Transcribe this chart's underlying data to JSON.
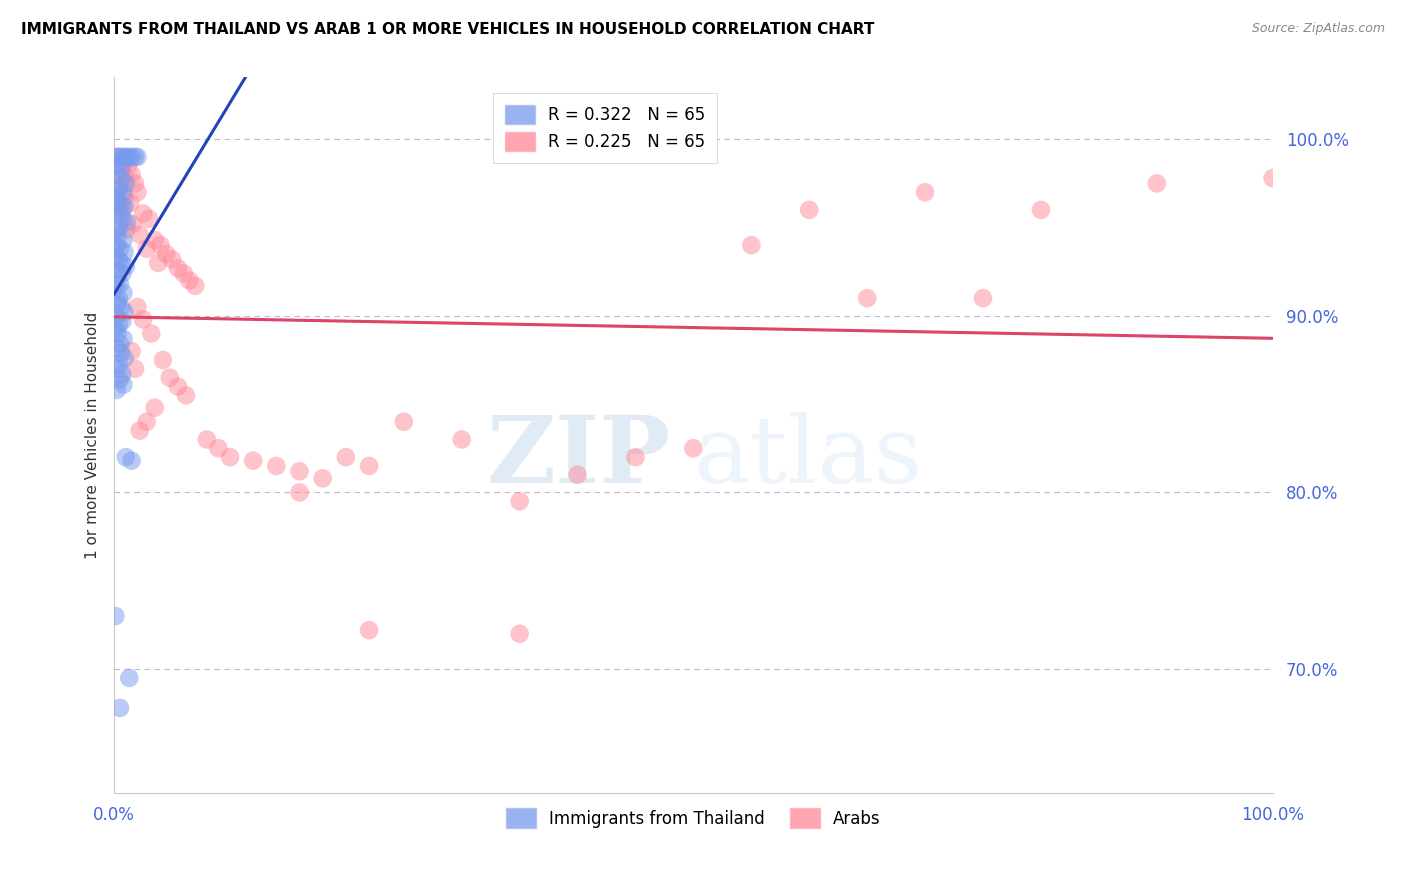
{
  "title": "IMMIGRANTS FROM THAILAND VS ARAB 1 OR MORE VEHICLES IN HOUSEHOLD CORRELATION CHART",
  "source": "Source: ZipAtlas.com",
  "ylabel": "1 or more Vehicles in Household",
  "watermark_zip": "ZIP",
  "watermark_atlas": "atlas",
  "background_color": "#ffffff",
  "grid_color": "#bbbbcc",
  "axis_color": "#cccccc",
  "tick_label_color": "#4466dd",
  "thailand_color": "#7799ee",
  "arab_color": "#ff8899",
  "thailand_line_color": "#2244bb",
  "arab_line_color": "#dd4466",
  "yticks": [
    1.0,
    0.9,
    0.8,
    0.7
  ],
  "xlim": [
    0.0,
    1.0
  ],
  "ylim": [
    0.63,
    1.035
  ],
  "thailand_scatter": [
    [
      0.002,
      0.99
    ],
    [
      0.005,
      0.99
    ],
    [
      0.008,
      0.99
    ],
    [
      0.01,
      0.99
    ],
    [
      0.012,
      0.99
    ],
    [
      0.015,
      0.99
    ],
    [
      0.018,
      0.99
    ],
    [
      0.02,
      0.99
    ],
    [
      0.003,
      0.985
    ],
    [
      0.007,
      0.985
    ],
    [
      0.002,
      0.98
    ],
    [
      0.006,
      0.978
    ],
    [
      0.01,
      0.975
    ],
    [
      0.004,
      0.972
    ],
    [
      0.008,
      0.97
    ],
    [
      0.001,
      0.968
    ],
    [
      0.003,
      0.965
    ],
    [
      0.006,
      0.963
    ],
    [
      0.009,
      0.962
    ],
    [
      0.002,
      0.96
    ],
    [
      0.005,
      0.958
    ],
    [
      0.007,
      0.955
    ],
    [
      0.011,
      0.953
    ],
    [
      0.004,
      0.95
    ],
    [
      0.001,
      0.948
    ],
    [
      0.003,
      0.945
    ],
    [
      0.008,
      0.943
    ],
    [
      0.002,
      0.94
    ],
    [
      0.005,
      0.938
    ],
    [
      0.009,
      0.936
    ],
    [
      0.001,
      0.934
    ],
    [
      0.004,
      0.932
    ],
    [
      0.006,
      0.93
    ],
    [
      0.01,
      0.928
    ],
    [
      0.003,
      0.926
    ],
    [
      0.007,
      0.924
    ],
    [
      0.002,
      0.92
    ],
    [
      0.005,
      0.918
    ],
    [
      0.001,
      0.915
    ],
    [
      0.008,
      0.913
    ],
    [
      0.004,
      0.91
    ],
    [
      0.003,
      0.907
    ],
    [
      0.006,
      0.905
    ],
    [
      0.009,
      0.902
    ],
    [
      0.002,
      0.9
    ],
    [
      0.007,
      0.897
    ],
    [
      0.004,
      0.895
    ],
    [
      0.001,
      0.893
    ],
    [
      0.003,
      0.89
    ],
    [
      0.008,
      0.887
    ],
    [
      0.005,
      0.884
    ],
    [
      0.002,
      0.882
    ],
    [
      0.006,
      0.879
    ],
    [
      0.009,
      0.876
    ],
    [
      0.004,
      0.873
    ],
    [
      0.003,
      0.87
    ],
    [
      0.007,
      0.867
    ],
    [
      0.005,
      0.864
    ],
    [
      0.008,
      0.861
    ],
    [
      0.002,
      0.858
    ],
    [
      0.001,
      0.73
    ],
    [
      0.01,
      0.82
    ],
    [
      0.015,
      0.818
    ],
    [
      0.005,
      0.678
    ],
    [
      0.013,
      0.695
    ]
  ],
  "arab_scatter": [
    [
      0.003,
      0.99
    ],
    [
      0.008,
      0.988
    ],
    [
      0.012,
      0.985
    ],
    [
      0.006,
      0.982
    ],
    [
      0.015,
      0.98
    ],
    [
      0.01,
      0.978
    ],
    [
      0.018,
      0.975
    ],
    [
      0.004,
      0.972
    ],
    [
      0.02,
      0.97
    ],
    [
      0.009,
      0.967
    ],
    [
      0.014,
      0.964
    ],
    [
      0.007,
      0.96
    ],
    [
      0.025,
      0.958
    ],
    [
      0.03,
      0.955
    ],
    [
      0.016,
      0.952
    ],
    [
      0.011,
      0.949
    ],
    [
      0.022,
      0.946
    ],
    [
      0.035,
      0.943
    ],
    [
      0.04,
      0.94
    ],
    [
      0.028,
      0.938
    ],
    [
      0.045,
      0.935
    ],
    [
      0.05,
      0.932
    ],
    [
      0.038,
      0.93
    ],
    [
      0.055,
      0.927
    ],
    [
      0.06,
      0.924
    ],
    [
      0.065,
      0.92
    ],
    [
      0.07,
      0.917
    ],
    [
      0.02,
      0.905
    ],
    [
      0.025,
      0.898
    ],
    [
      0.032,
      0.89
    ],
    [
      0.015,
      0.88
    ],
    [
      0.042,
      0.875
    ],
    [
      0.018,
      0.87
    ],
    [
      0.048,
      0.865
    ],
    [
      0.055,
      0.86
    ],
    [
      0.062,
      0.855
    ],
    [
      0.035,
      0.848
    ],
    [
      0.028,
      0.84
    ],
    [
      0.022,
      0.835
    ],
    [
      0.08,
      0.83
    ],
    [
      0.09,
      0.825
    ],
    [
      0.1,
      0.82
    ],
    [
      0.12,
      0.818
    ],
    [
      0.14,
      0.815
    ],
    [
      0.16,
      0.812
    ],
    [
      0.18,
      0.808
    ],
    [
      0.2,
      0.82
    ],
    [
      0.22,
      0.815
    ],
    [
      0.25,
      0.84
    ],
    [
      0.3,
      0.83
    ],
    [
      0.35,
      0.795
    ],
    [
      0.4,
      0.81
    ],
    [
      0.45,
      0.82
    ],
    [
      0.5,
      0.825
    ],
    [
      0.55,
      0.94
    ],
    [
      0.6,
      0.96
    ],
    [
      0.65,
      0.91
    ],
    [
      0.7,
      0.97
    ],
    [
      0.75,
      0.91
    ],
    [
      0.8,
      0.96
    ],
    [
      0.9,
      0.975
    ],
    [
      0.22,
      0.722
    ],
    [
      0.35,
      0.72
    ],
    [
      0.16,
      0.8
    ],
    [
      1.0,
      0.978
    ]
  ],
  "legend_th_label": "R = 0.322   N = 65",
  "legend_arab_label": "R = 0.225   N = 65",
  "bottom_legend_th": "Immigrants from Thailand",
  "bottom_legend_arab": "Arabs"
}
